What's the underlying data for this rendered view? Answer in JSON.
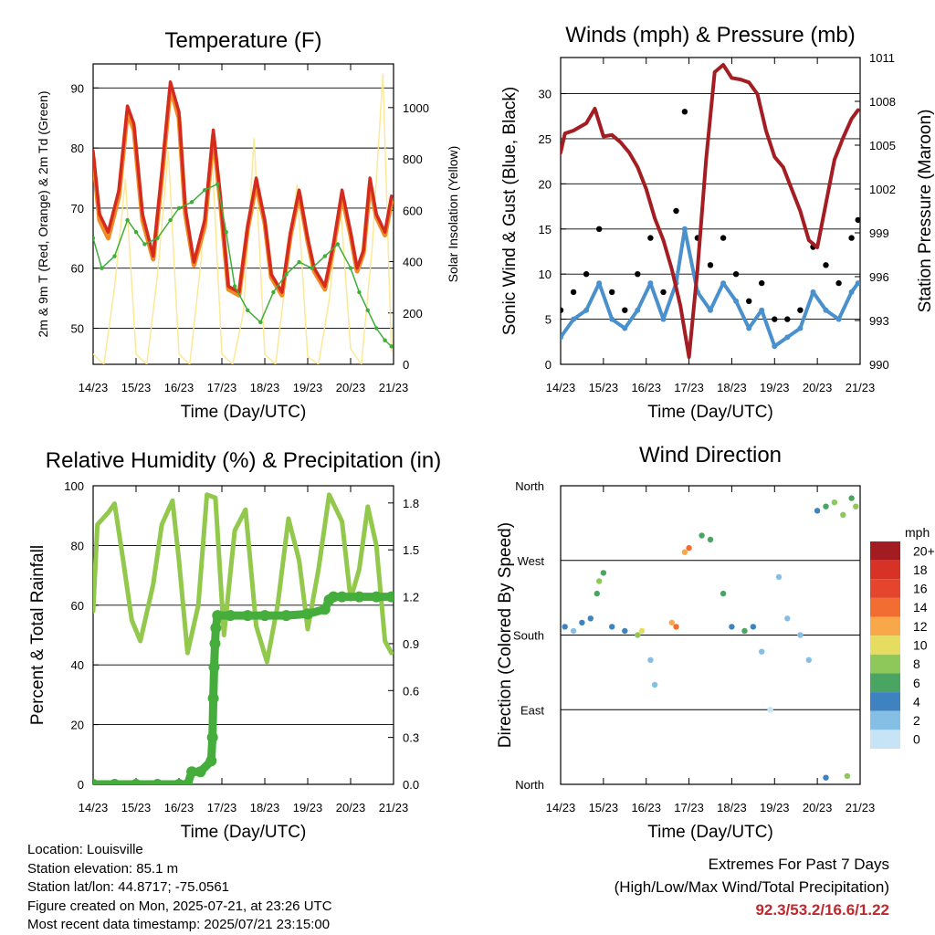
{
  "chart_data": [
    {
      "type": "line",
      "title": "Temperature (F)",
      "xlabel": "Time (Day/UTC)",
      "ylabel": "2m & 9m T (Red, Orange) & 2m Td (Green)",
      "ylabel_right": "Solar Insolation (Yellow)",
      "x_ticks": [
        "14/23",
        "15/23",
        "16/23",
        "17/23",
        "18/23",
        "19/23",
        "20/23",
        "21/23"
      ],
      "y_ticks": [
        50,
        60,
        70,
        80,
        90
      ],
      "y_ticks_right": [
        0,
        200,
        400,
        600,
        800,
        1000
      ],
      "ylim": [
        44,
        94
      ],
      "ylim_right": [
        0,
        1170
      ],
      "grid": true,
      "series": [
        {
          "name": "2m T",
          "color": "#d42a1f",
          "x": [
            0,
            0.15,
            0.35,
            0.6,
            0.8,
            0.95,
            1.15,
            1.4,
            1.6,
            1.8,
            2.0,
            2.15,
            2.35,
            2.6,
            2.8,
            2.95,
            3.15,
            3.4,
            3.6,
            3.8,
            4.0,
            4.15,
            4.4,
            4.6,
            4.8,
            5.0,
            5.15,
            5.4,
            5.6,
            5.8,
            6.0,
            6.15,
            6.3,
            6.45,
            6.6,
            6.8,
            6.95
          ],
          "y": [
            79.5,
            69,
            66,
            73,
            87,
            84,
            69,
            62,
            76,
            91,
            86,
            70,
            61,
            68,
            83,
            73,
            57,
            56,
            67,
            75,
            68,
            59,
            56,
            66,
            73,
            65,
            60,
            57,
            64,
            73,
            66,
            60,
            63,
            75,
            69,
            66,
            72
          ]
        },
        {
          "name": "9m T",
          "color": "#f08a24",
          "x": [
            0,
            0.15,
            0.35,
            0.6,
            0.8,
            0.95,
            1.15,
            1.4,
            1.6,
            1.8,
            2.0,
            2.15,
            2.35,
            2.6,
            2.8,
            2.95,
            3.15,
            3.4,
            3.6,
            3.8,
            4.0,
            4.15,
            4.4,
            4.6,
            4.8,
            5.0,
            5.15,
            5.4,
            5.6,
            5.8,
            6.0,
            6.15,
            6.3,
            6.45,
            6.6,
            6.8,
            6.95
          ],
          "y": [
            78.5,
            68,
            65,
            72,
            86,
            83,
            68,
            61.5,
            75,
            90,
            85,
            69,
            60.5,
            67,
            82,
            72,
            56.5,
            55.5,
            66.5,
            74,
            67.5,
            58.5,
            55.5,
            65.5,
            72.5,
            64.5,
            59.5,
            56.5,
            63.5,
            72,
            65.5,
            59.5,
            62.5,
            74,
            68.5,
            65.5,
            71
          ]
        },
        {
          "name": "2m Td",
          "color": "#3fae3a",
          "x": [
            0,
            0.2,
            0.5,
            0.8,
            1.0,
            1.2,
            1.5,
            1.8,
            2.0,
            2.3,
            2.6,
            2.9,
            3.1,
            3.3,
            3.6,
            3.9,
            4.2,
            4.5,
            4.8,
            5.1,
            5.4,
            5.7,
            6.0,
            6.2,
            6.4,
            6.6,
            6.8,
            6.95
          ],
          "y": [
            65,
            60,
            62,
            68,
            66,
            64,
            65,
            68,
            70,
            71,
            73,
            74,
            66,
            57,
            53,
            51,
            56,
            59,
            61,
            60,
            62,
            64,
            60,
            56,
            53,
            50,
            48,
            47
          ]
        },
        {
          "name": "Solar Insolation",
          "color": "#fde58c",
          "x": [
            0,
            0.25,
            0.5,
            0.75,
            1.0,
            1.25,
            1.5,
            1.75,
            2.0,
            2.25,
            2.5,
            2.75,
            3.0,
            3.25,
            3.5,
            3.75,
            4.0,
            4.25,
            4.5,
            4.75,
            5.0,
            5.25,
            5.5,
            5.75,
            6.0,
            6.25,
            6.5,
            6.75,
            6.95
          ],
          "y": [
            40,
            0,
            300,
            720,
            40,
            0,
            350,
            830,
            40,
            0,
            380,
            880,
            40,
            0,
            200,
            880,
            40,
            0,
            350,
            700,
            30,
            0,
            250,
            650,
            60,
            0,
            450,
            1130,
            50
          ]
        }
      ]
    },
    {
      "type": "scatter",
      "title": "Winds (mph) & Pressure (mb)",
      "xlabel": "Time (Day/UTC)",
      "ylabel": "Sonic Wind & Gust (Blue, Black)",
      "ylabel_right": "Station Pressure (Maroon)",
      "x_ticks": [
        "14/23",
        "15/23",
        "16/23",
        "17/23",
        "18/23",
        "19/23",
        "20/23",
        "21/23"
      ],
      "y_ticks": [
        0,
        5,
        10,
        15,
        20,
        25,
        30
      ],
      "y_ticks_right": [
        990,
        993,
        996,
        999,
        1002,
        1005,
        1008,
        1011
      ],
      "ylim": [
        0,
        34
      ],
      "ylim_right": [
        990,
        1011
      ],
      "grid": true,
      "series": [
        {
          "name": "Sonic Wind",
          "color": "#4a90cc",
          "x": [
            0,
            0.3,
            0.6,
            0.9,
            1.2,
            1.5,
            1.8,
            2.1,
            2.4,
            2.7,
            2.9,
            3.2,
            3.5,
            3.8,
            4.1,
            4.4,
            4.7,
            5.0,
            5.3,
            5.6,
            5.9,
            6.2,
            6.5,
            6.8,
            6.95
          ],
          "y": [
            3,
            5,
            6,
            9,
            5,
            4,
            6,
            9,
            5,
            9,
            15,
            8,
            6,
            9,
            7,
            4,
            6,
            2,
            3,
            4,
            8,
            6,
            5,
            8,
            9
          ]
        },
        {
          "name": "Gust",
          "color": "#000000",
          "x": [
            0,
            0.3,
            0.6,
            0.9,
            1.2,
            1.5,
            1.8,
            2.1,
            2.4,
            2.7,
            2.9,
            3.2,
            3.5,
            3.8,
            4.1,
            4.4,
            4.7,
            5.0,
            5.3,
            5.6,
            5.9,
            6.2,
            6.5,
            6.8,
            6.95
          ],
          "y": [
            6,
            8,
            10,
            15,
            8,
            6,
            10,
            14,
            8,
            17,
            28,
            14,
            11,
            14,
            10,
            7,
            9,
            5,
            5,
            6,
            13,
            11,
            9,
            14,
            16
          ]
        },
        {
          "name": "Station Pressure",
          "color": "#a31d22",
          "x": [
            0,
            0.1,
            0.3,
            0.6,
            0.8,
            1.0,
            1.2,
            1.4,
            1.6,
            1.8,
            2.0,
            2.2,
            2.4,
            2.6,
            2.8,
            3.0,
            3.2,
            3.4,
            3.6,
            3.8,
            4.0,
            4.2,
            4.4,
            4.6,
            4.8,
            5.0,
            5.2,
            5.4,
            5.6,
            5.8,
            6.0,
            6.2,
            6.4,
            6.6,
            6.8,
            6.95
          ],
          "y": [
            1004.5,
            1005.8,
            1006,
            1006.5,
            1007.5,
            1005.6,
            1005.7,
            1005.2,
            1004.5,
            1003.5,
            1002.0,
            1000.0,
            998.5,
            996.5,
            994,
            990.5,
            996.5,
            1004,
            1010,
            1010.5,
            1009.6,
            1009.5,
            1009.3,
            1008.5,
            1006,
            1004.2,
            1003.5,
            1002,
            1000.5,
            998.5,
            998,
            1001,
            1004,
            1005.5,
            1006.8,
            1007.4
          ]
        }
      ]
    },
    {
      "type": "line",
      "title": "Relative Humidity (%) & Precipitation (in)",
      "xlabel": "Time (Day/UTC)",
      "ylabel": "Percent & Total Rainfall",
      "x_ticks": [
        "14/23",
        "15/23",
        "16/23",
        "17/23",
        "18/23",
        "19/23",
        "20/23",
        "21/23"
      ],
      "y_ticks": [
        0,
        20,
        40,
        60,
        80,
        100
      ],
      "y_ticks_right": [
        "0.0",
        "0.3",
        "0.6",
        "0.9",
        "1.2",
        "1.5",
        "1.8"
      ],
      "ylim": [
        0,
        100
      ],
      "ylim_right": [
        0,
        1.91
      ],
      "grid": true,
      "series": [
        {
          "name": "Relative Humidity",
          "color": "#92c84c",
          "x": [
            0,
            0.1,
            0.35,
            0.5,
            0.7,
            0.9,
            1.1,
            1.4,
            1.6,
            1.85,
            2.0,
            2.2,
            2.45,
            2.65,
            2.85,
            3.05,
            3.3,
            3.55,
            3.8,
            4.05,
            4.3,
            4.55,
            4.8,
            5.0,
            5.25,
            5.5,
            5.8,
            6.0,
            6.2,
            6.4,
            6.6,
            6.8,
            6.95
          ],
          "y": [
            58,
            87,
            91,
            94,
            75,
            55,
            48,
            67,
            87,
            95,
            75,
            44,
            60,
            97,
            96,
            50,
            85,
            92,
            53,
            41,
            60,
            89,
            75,
            52,
            72,
            97,
            88,
            62,
            72,
            93,
            80,
            48,
            44
          ]
        },
        {
          "name": "Total Rainfall",
          "color": "#45ad3c",
          "x": [
            0,
            0.5,
            1.0,
            1.5,
            2.0,
            2.2,
            2.3,
            2.5,
            2.75,
            2.78,
            2.8,
            2.82,
            2.84,
            2.86,
            2.9,
            3.2,
            3.6,
            4.0,
            4.5,
            5.0,
            5.4,
            5.5,
            5.6,
            5.8,
            6.2,
            6.6,
            6.95
          ],
          "y": [
            0,
            0,
            0,
            0,
            0,
            0,
            0.08,
            0.08,
            0.15,
            0.3,
            0.55,
            0.75,
            0.9,
            1.0,
            1.08,
            1.08,
            1.08,
            1.08,
            1.08,
            1.09,
            1.12,
            1.18,
            1.2,
            1.2,
            1.2,
            1.2,
            1.2
          ]
        }
      ]
    },
    {
      "type": "scatter",
      "title": "Wind Direction",
      "xlabel": "Time (Day/UTC)",
      "ylabel": "Direction (Colored By Speed)",
      "x_ticks": [
        "14/23",
        "15/23",
        "16/23",
        "17/23",
        "18/23",
        "19/23",
        "20/23",
        "21/23"
      ],
      "y_ticks": [
        "North",
        "East",
        "South",
        "West",
        "North"
      ],
      "ylim": [
        0,
        360
      ],
      "grid": true,
      "colorbar_title": "mph",
      "colorbar_labels": [
        "20+",
        "18",
        "16",
        "14",
        "12",
        "10",
        "8",
        "6",
        "4",
        "2",
        "0"
      ],
      "colorbar_colors": [
        "#a31c22",
        "#d63226",
        "#e5452c",
        "#f26d32",
        "#f8a848",
        "#e6dc60",
        "#8ec75a",
        "#4aa563",
        "#3f82c0",
        "#86bfe6",
        "#c6e4f6"
      ],
      "points": [
        {
          "x": 0.1,
          "y": 190,
          "speed": 4
        },
        {
          "x": 0.3,
          "y": 185,
          "speed": 3
        },
        {
          "x": 0.5,
          "y": 195,
          "speed": 5
        },
        {
          "x": 0.7,
          "y": 200,
          "speed": 5
        },
        {
          "x": 0.85,
          "y": 230,
          "speed": 7
        },
        {
          "x": 0.9,
          "y": 245,
          "speed": 8
        },
        {
          "x": 1.0,
          "y": 255,
          "speed": 6
        },
        {
          "x": 1.2,
          "y": 190,
          "speed": 4
        },
        {
          "x": 1.5,
          "y": 185,
          "speed": 4
        },
        {
          "x": 1.8,
          "y": 180,
          "speed": 9
        },
        {
          "x": 1.9,
          "y": 185,
          "speed": 10
        },
        {
          "x": 2.1,
          "y": 150,
          "speed": 3
        },
        {
          "x": 2.2,
          "y": 120,
          "speed": 2
        },
        {
          "x": 2.6,
          "y": 195,
          "speed": 13
        },
        {
          "x": 2.7,
          "y": 190,
          "speed": 15
        },
        {
          "x": 2.9,
          "y": 280,
          "speed": 12
        },
        {
          "x": 3.0,
          "y": 285,
          "speed": 14
        },
        {
          "x": 3.3,
          "y": 300,
          "speed": 7
        },
        {
          "x": 3.5,
          "y": 295,
          "speed": 6
        },
        {
          "x": 3.8,
          "y": 230,
          "speed": 6
        },
        {
          "x": 4.0,
          "y": 190,
          "speed": 4
        },
        {
          "x": 4.3,
          "y": 185,
          "speed": 6
        },
        {
          "x": 4.5,
          "y": 190,
          "speed": 4
        },
        {
          "x": 4.7,
          "y": 160,
          "speed": 3
        },
        {
          "x": 4.9,
          "y": 90,
          "speed": 1
        },
        {
          "x": 5.1,
          "y": 250,
          "speed": 2
        },
        {
          "x": 5.3,
          "y": 200,
          "speed": 3
        },
        {
          "x": 5.6,
          "y": 180,
          "speed": 3
        },
        {
          "x": 5.8,
          "y": 150,
          "speed": 2
        },
        {
          "x": 6.0,
          "y": 330,
          "speed": 4
        },
        {
          "x": 6.2,
          "y": 335,
          "speed": 6
        },
        {
          "x": 6.4,
          "y": 340,
          "speed": 9
        },
        {
          "x": 6.6,
          "y": 325,
          "speed": 8
        },
        {
          "x": 6.8,
          "y": 345,
          "speed": 7
        },
        {
          "x": 6.9,
          "y": 335,
          "speed": 9
        },
        {
          "x": 6.2,
          "y": 8,
          "speed": 5
        },
        {
          "x": 6.7,
          "y": 10,
          "speed": 8
        }
      ]
    }
  ],
  "footer": {
    "location": "Location: Louisville",
    "elevation": "Station elevation: 85.1 m",
    "latlon": "Station lat/lon: 44.8717; -75.0561",
    "created": "Figure created on Mon, 2025-07-21, at 23:26 UTC",
    "recent": "Most recent data timestamp: 2025/07/21 23:15:00"
  },
  "extremes": {
    "title": "Extremes For Past 7 Days",
    "subtitle": "(High/Low/Max Wind/Total Precipitation)",
    "values": "92.3/53.2/16.6/1.22",
    "value_color": "#c0282d"
  }
}
